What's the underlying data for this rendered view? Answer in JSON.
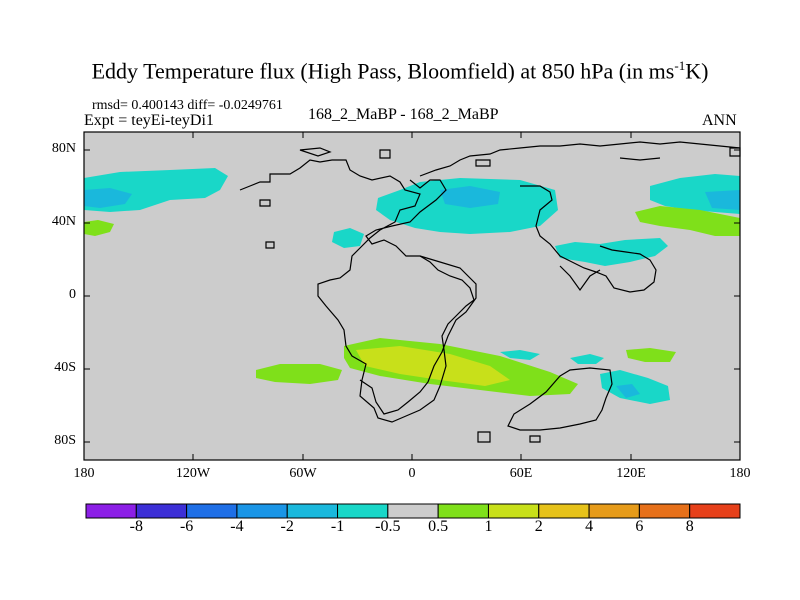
{
  "title": {
    "main": "Eddy Temperature flux (High Pass, Bloomfield) at 850 hPa (in ms",
    "sup": "-1",
    "end": "K)"
  },
  "stats_text": "rmsd= 0.400143  diff= -0.0249761",
  "experiment_text": "Expt = teyEi-teyDi1",
  "center_label": "168_2_MaBP - 168_2_MaBP",
  "season_label": "ANN",
  "y_ticks": [
    "80N",
    "40N",
    "0",
    "40S",
    "80S"
  ],
  "x_ticks": [
    "180",
    "120W",
    "60W",
    "0",
    "60E",
    "120E",
    "180"
  ],
  "colorbar": {
    "colors": [
      "#8c1fe6",
      "#3c2fd6",
      "#1f6fe6",
      "#1a95e6",
      "#1ab8dc",
      "#19d7c8",
      "#cccccc",
      "#7fe01a",
      "#c8e01a",
      "#e6c21a",
      "#e69b1a",
      "#e6701a",
      "#e6401a"
    ],
    "tick_labels": [
      "-8",
      "-6",
      "-4",
      "-2",
      "-1",
      "-0.5",
      "0.5",
      "1",
      "2",
      "4",
      "6",
      "8"
    ]
  },
  "colors": {
    "background_field": "#cccccc",
    "pos_light": "#7fe01a",
    "pos_mid": "#c8e01a",
    "neg_light": "#19d7c8",
    "neg_mid": "#1ab8dc"
  }
}
